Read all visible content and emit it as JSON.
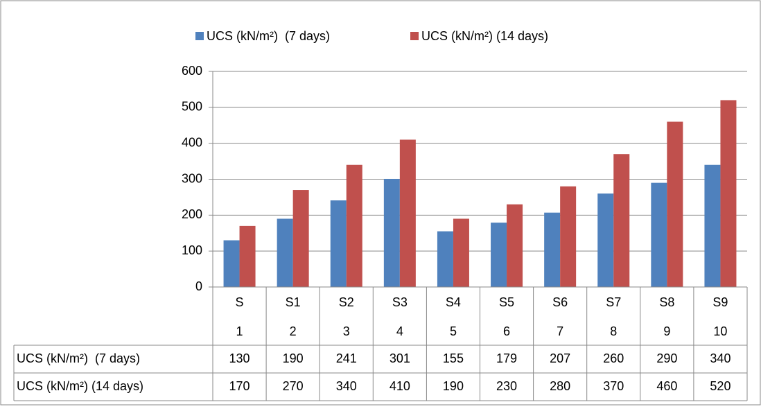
{
  "chart_data": {
    "type": "bar",
    "categories": [
      [
        "S",
        "1"
      ],
      [
        "S1",
        "2"
      ],
      [
        "S2",
        "3"
      ],
      [
        "S3",
        "4"
      ],
      [
        "S4",
        "5"
      ],
      [
        "S5",
        "6"
      ],
      [
        "S6",
        "7"
      ],
      [
        "S7",
        "8"
      ],
      [
        "S8",
        "9"
      ],
      [
        "S9",
        "10"
      ]
    ],
    "series": [
      {
        "name": "UCS (kN/m²)  (7 days)",
        "color": "#4f81bd",
        "values": [
          130,
          190,
          241,
          301,
          155,
          179,
          207,
          260,
          290,
          340
        ]
      },
      {
        "name": "UCS (kN/m²) (14 days)",
        "color": "#c0504d",
        "values": [
          170,
          270,
          340,
          410,
          190,
          230,
          280,
          370,
          460,
          520
        ]
      }
    ],
    "ylim": [
      0,
      600
    ],
    "yticks": [
      0,
      100,
      200,
      300,
      400,
      500,
      600
    ],
    "grid": true,
    "legend": "top",
    "data_table": true
  }
}
